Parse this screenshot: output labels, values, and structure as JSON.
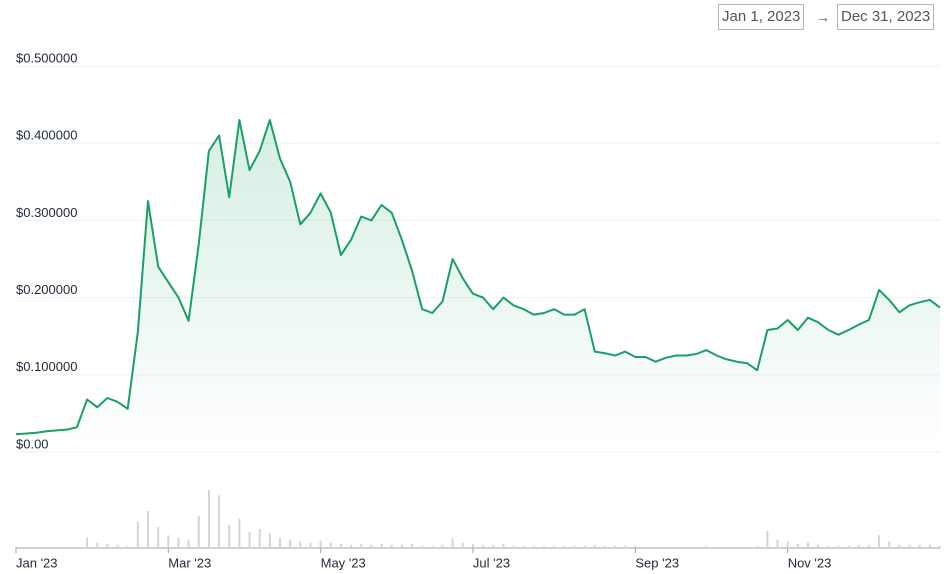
{
  "date_range": {
    "start": "Jan 1, 2023",
    "separator": "→",
    "end": "Dec 31, 2023"
  },
  "chart_data": {
    "type": "line",
    "color": "#1aa064",
    "xlim": [
      0,
      91
    ],
    "xticks": [
      {
        "value": 0,
        "label": "Jan '23"
      },
      {
        "value": 15,
        "label": "Mar '23"
      },
      {
        "value": 30,
        "label": "May '23"
      },
      {
        "value": 45,
        "label": "Jul '23"
      },
      {
        "value": 61,
        "label": "Sep '23"
      },
      {
        "value": 76,
        "label": "Nov '23"
      }
    ],
    "ylim": [
      0,
      0.5
    ],
    "yticks": [
      {
        "value": 0,
        "label": "$0.00"
      },
      {
        "value": 0.1,
        "label": "$0.100000"
      },
      {
        "value": 0.2,
        "label": "$0.200000"
      },
      {
        "value": 0.3,
        "label": "$0.300000"
      },
      {
        "value": 0.4,
        "label": "$0.400000"
      },
      {
        "value": 0.5,
        "label": "$0.500000"
      }
    ],
    "grid": true,
    "values": [
      0.023,
      0.024,
      0.025,
      0.027,
      0.028,
      0.029,
      0.032,
      0.068,
      0.058,
      0.07,
      0.065,
      0.056,
      0.155,
      0.325,
      0.24,
      0.22,
      0.2,
      0.17,
      0.27,
      0.39,
      0.41,
      0.33,
      0.43,
      0.365,
      0.39,
      0.43,
      0.38,
      0.35,
      0.295,
      0.31,
      0.335,
      0.31,
      0.255,
      0.275,
      0.305,
      0.3,
      0.32,
      0.31,
      0.275,
      0.235,
      0.185,
      0.18,
      0.195,
      0.25,
      0.225,
      0.205,
      0.2,
      0.185,
      0.2,
      0.19,
      0.185,
      0.178,
      0.18,
      0.185,
      0.178,
      0.178,
      0.185,
      0.13,
      0.128,
      0.125,
      0.13,
      0.123,
      0.123,
      0.117,
      0.122,
      0.125,
      0.125,
      0.127,
      0.132,
      0.125,
      0.12,
      0.117,
      0.115,
      0.106,
      0.158,
      0.16,
      0.171,
      0.158,
      0.174,
      0.168,
      0.158,
      0.152,
      0.158,
      0.165,
      0.171,
      0.21,
      0.197,
      0.181,
      0.19,
      0.194,
      0.197,
      0.187
    ],
    "volume_color": "#d4d4d8",
    "volumes": [
      1,
      1,
      1,
      1,
      1,
      1,
      1,
      10,
      5,
      4,
      3,
      2,
      25,
      35,
      20,
      12,
      10,
      8,
      30,
      55,
      50,
      22,
      28,
      15,
      18,
      14,
      10,
      8,
      6,
      5,
      7,
      5,
      4,
      3,
      4,
      3,
      4,
      3,
      3,
      4,
      2,
      2,
      3,
      9,
      5,
      4,
      3,
      3,
      4,
      2,
      2,
      2,
      2,
      2,
      2,
      2,
      2,
      3,
      2,
      2,
      2,
      2,
      1,
      1,
      1,
      1,
      1,
      1,
      2,
      1,
      1,
      1,
      1,
      2,
      16,
      8,
      6,
      4,
      5,
      3,
      2,
      2,
      2,
      3,
      3,
      12,
      6,
      3,
      3,
      3,
      3,
      2
    ]
  }
}
